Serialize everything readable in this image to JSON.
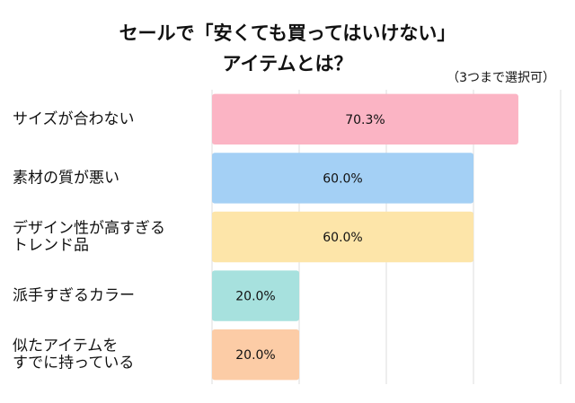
{
  "chart_data": {
    "type": "bar",
    "orientation": "horizontal",
    "title": [
      "セールで「安くても買ってはいけない」",
      "アイテムとは？"
    ],
    "subtitle": "（3つまで選択可）",
    "categories": [
      [
        "サイズが合わない"
      ],
      [
        "素材の質が悪い"
      ],
      [
        "デザイン性が高すぎる",
        "トレンド品"
      ],
      [
        "派手すぎるカラー"
      ],
      [
        "似たアイテムを",
        "すでに持っている"
      ]
    ],
    "values": [
      70.3,
      60.0,
      60.0,
      20.0,
      20.0
    ],
    "value_labels": [
      "70.3%",
      "60.0%",
      "60.0%",
      "20.0%",
      "20.0%"
    ],
    "colors": [
      "#fbb4c4",
      "#a4d0f5",
      "#fde5a9",
      "#a7e1de",
      "#fccca6"
    ],
    "xlim": [
      0,
      80
    ],
    "xticks": [
      0,
      20,
      40,
      60,
      80
    ],
    "grid": true
  }
}
